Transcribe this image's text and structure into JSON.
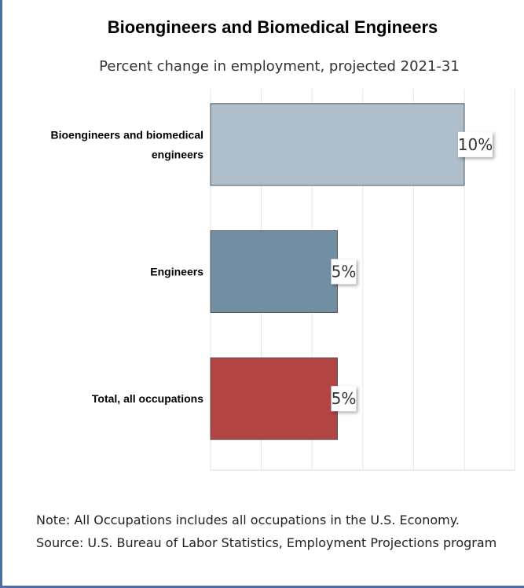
{
  "chart_data": {
    "type": "bar",
    "orientation": "horizontal",
    "title": "Bioengineers and Biomedical Engineers",
    "subtitle": "Percent change in employment, projected 2021-31",
    "categories": [
      "Bioengineers and biomedical engineers",
      "Engineers",
      "Total, all occupations"
    ],
    "values": [
      10,
      5,
      5
    ],
    "value_labels": [
      "10%",
      "5%",
      "5%"
    ],
    "colors": [
      "#aebfcb",
      "#718ea3",
      "#b34444"
    ],
    "xlim": [
      0,
      12
    ],
    "grid": true
  },
  "notes": {
    "note": "Note: All Occupations includes all occupations in the U.S. Economy.",
    "source": "Source: U.S. Bureau of Labor Statistics, Employment Projections program"
  }
}
